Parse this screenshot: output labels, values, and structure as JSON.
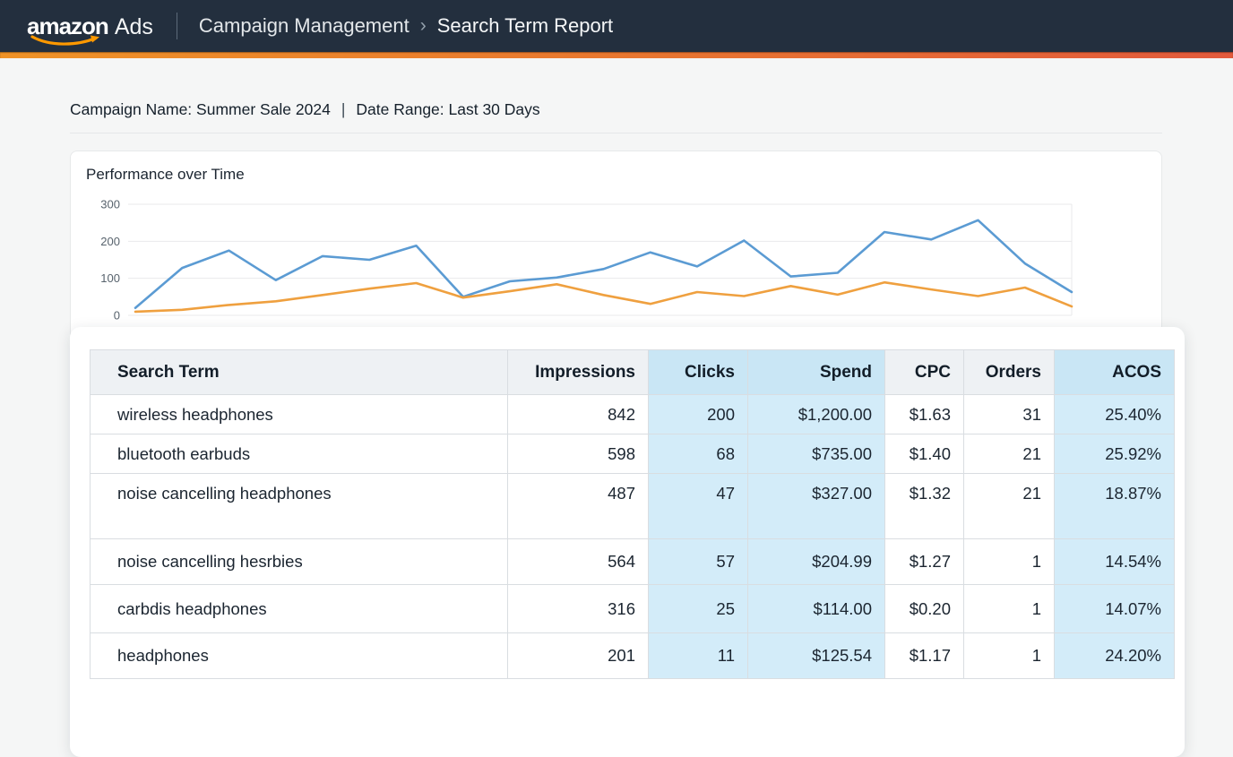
{
  "navbar": {
    "logo_text": "amazon",
    "logo_suffix": "Ads",
    "breadcrumb": {
      "section": "Campaign Management",
      "separator": "›",
      "page": "Search Term Report"
    }
  },
  "meta": {
    "campaign": "Campaign Name: Summer Sale 2024",
    "separator": "|",
    "date_range": "Date Range: Last 30 Days"
  },
  "chart": {
    "title": "Performance over Time"
  },
  "chart_data": {
    "type": "line",
    "title": "Performance over Time",
    "xlabel": "",
    "ylabel": "",
    "ylim": [
      0,
      300
    ],
    "yticks": [
      0,
      100,
      200,
      300
    ],
    "grid": true,
    "legend": "none",
    "x": [
      1,
      2,
      3,
      4,
      5,
      6,
      7,
      8,
      9,
      10,
      11,
      12,
      13,
      14,
      15,
      16,
      17,
      18,
      19,
      20,
      21
    ],
    "series": [
      {
        "name": "blue",
        "color": "#5b9bd3",
        "values": [
          20,
          128,
          175,
          95,
          160,
          150,
          188,
          50,
          92,
          102,
          125,
          170,
          132,
          202,
          105,
          115,
          225,
          205,
          257,
          140,
          63
        ]
      },
      {
        "name": "orange",
        "color": "#efa03f",
        "values": [
          10,
          15,
          28,
          38,
          55,
          72,
          87,
          48,
          65,
          84,
          55,
          31,
          63,
          52,
          79,
          56,
          89,
          70,
          52,
          75,
          24
        ]
      }
    ]
  },
  "table": {
    "columns": [
      {
        "label": "Search Term",
        "align": "left",
        "highlight": false
      },
      {
        "label": "Impressions",
        "align": "right",
        "highlight": false
      },
      {
        "label": "Clicks",
        "align": "right",
        "highlight": true
      },
      {
        "label": "Spend",
        "align": "right",
        "highlight": true
      },
      {
        "label": "CPC",
        "align": "right",
        "highlight": false
      },
      {
        "label": "Orders",
        "align": "right",
        "highlight": false
      },
      {
        "label": "ACOS",
        "align": "right",
        "highlight": true
      }
    ],
    "rows": [
      [
        "wireless headphones",
        "842",
        "200",
        "$1,200.00",
        "$1.63",
        "31",
        "25.40%"
      ],
      [
        "bluetooth earbuds",
        "598",
        "68",
        "$735.00",
        "$1.40",
        "21",
        "25.92%"
      ],
      [
        "noise cancelling headphones",
        "487",
        "47",
        "$327.00",
        "$1.32",
        "21",
        "18.87%"
      ],
      [
        "noise cancelling hesrbies",
        "564",
        "57",
        "$204.99",
        "$1.27",
        "1",
        "14.54%"
      ],
      [
        "carbdis headphones",
        "316",
        "25",
        "$114.00",
        "$0.20",
        "1",
        "14.07%"
      ],
      [
        "headphones",
        "201",
        "11",
        "$125.54",
        "$1.17",
        "1",
        "24.20%"
      ]
    ]
  },
  "colors": {
    "navbar_bg": "#232f3e",
    "accent_from": "#ef9327",
    "accent_to": "#e25a3c",
    "smile_orange": "#ff9900",
    "highlight_header": "#c9e6f5",
    "highlight_cell": "#d3ecf9",
    "line_blue": "#5b9bd3",
    "line_orange": "#efa03f"
  }
}
